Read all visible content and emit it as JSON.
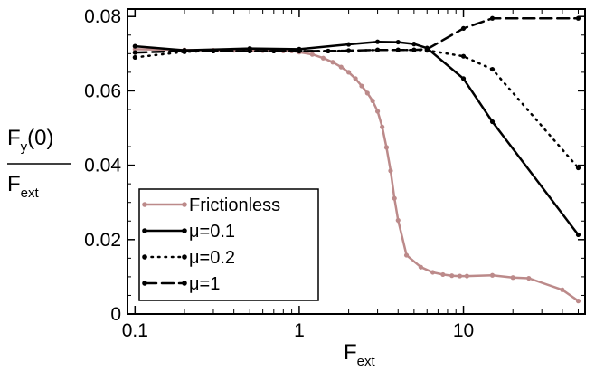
{
  "chart_data": {
    "type": "line",
    "xscale": "log",
    "xlim": [
      0.09,
      55
    ],
    "ylim": [
      0,
      0.082
    ],
    "xlabel": {
      "main": "F",
      "sub": "ext"
    },
    "ylabel": {
      "numerator": {
        "main": "F",
        "sub": "y",
        "suffix": "(0)"
      },
      "denominator": {
        "main": "F",
        "sub": "ext"
      }
    },
    "x_ticks": [
      {
        "value": 0.1,
        "label": "0.1"
      },
      {
        "value": 1,
        "label": "1"
      },
      {
        "value": 10,
        "label": "10"
      }
    ],
    "y_ticks": [
      {
        "value": 0,
        "label": "0"
      },
      {
        "value": 0.02,
        "label": "0.02"
      },
      {
        "value": 0.04,
        "label": "0.04"
      },
      {
        "value": 0.06,
        "label": "0.06"
      },
      {
        "value": 0.08,
        "label": "0.08"
      }
    ],
    "grid": false,
    "legend_position": "bottom-left",
    "series": [
      {
        "name": "Frictionless",
        "color": "#bc8a8a",
        "dash": "solid",
        "points": [
          [
            0.1,
            0.0712
          ],
          [
            0.2,
            0.071
          ],
          [
            0.3,
            0.0709
          ],
          [
            0.4,
            0.0709
          ],
          [
            0.5,
            0.0708
          ],
          [
            0.6,
            0.0708
          ],
          [
            0.7,
            0.0708
          ],
          [
            0.8,
            0.0707
          ],
          [
            0.9,
            0.0707
          ],
          [
            1.0,
            0.0704
          ],
          [
            1.2,
            0.0698
          ],
          [
            1.4,
            0.0688
          ],
          [
            1.6,
            0.0677
          ],
          [
            1.8,
            0.0664
          ],
          [
            2.0,
            0.065
          ],
          [
            2.2,
            0.0633
          ],
          [
            2.4,
            0.0613
          ],
          [
            2.6,
            0.0594
          ],
          [
            2.8,
            0.0573
          ],
          [
            3.0,
            0.0545
          ],
          [
            3.2,
            0.0503
          ],
          [
            3.4,
            0.0448
          ],
          [
            3.6,
            0.0385
          ],
          [
            3.8,
            0.0311
          ],
          [
            4.0,
            0.0252
          ],
          [
            4.5,
            0.0158
          ],
          [
            5.5,
            0.0126
          ],
          [
            6.5,
            0.0112
          ],
          [
            7.5,
            0.0106
          ],
          [
            8.5,
            0.0103
          ],
          [
            9.5,
            0.0102
          ],
          [
            10.5,
            0.0102
          ],
          [
            15,
            0.0104
          ],
          [
            20,
            0.0098
          ],
          [
            25,
            0.0096
          ],
          [
            40,
            0.0065
          ],
          [
            50,
            0.0035
          ]
        ]
      },
      {
        "name": "μ=0.1",
        "color": "#000000",
        "dash": "solid",
        "points": [
          [
            0.1,
            0.072
          ],
          [
            0.2,
            0.0709
          ],
          [
            0.5,
            0.0714
          ],
          [
            1.0,
            0.0712
          ],
          [
            2.0,
            0.0725
          ],
          [
            3.0,
            0.0732
          ],
          [
            4.0,
            0.0731
          ],
          [
            5.0,
            0.0726
          ],
          [
            6.0,
            0.0715
          ],
          [
            10,
            0.0633
          ],
          [
            15,
            0.0517
          ],
          [
            50,
            0.0213
          ]
        ]
      },
      {
        "name": "μ=0.2",
        "color": "#000000",
        "dash": "dotted",
        "points": [
          [
            0.1,
            0.069
          ],
          [
            0.2,
            0.0705
          ],
          [
            0.3,
            0.0707
          ],
          [
            0.5,
            0.0707
          ],
          [
            0.7,
            0.0707
          ],
          [
            1.0,
            0.0707
          ],
          [
            1.5,
            0.0707
          ],
          [
            2.0,
            0.0708
          ],
          [
            3.0,
            0.071
          ],
          [
            4.0,
            0.071
          ],
          [
            5.0,
            0.071
          ],
          [
            6.0,
            0.0709
          ],
          [
            10,
            0.0693
          ],
          [
            15,
            0.0658
          ],
          [
            50,
            0.0393
          ]
        ]
      },
      {
        "name": "μ=1",
        "color": "#000000",
        "dash": "dashed",
        "points": [
          [
            0.1,
            0.0703
          ],
          [
            0.2,
            0.0707
          ],
          [
            0.3,
            0.0707
          ],
          [
            0.5,
            0.0707
          ],
          [
            0.7,
            0.0707
          ],
          [
            1.0,
            0.0707
          ],
          [
            1.5,
            0.0707
          ],
          [
            2.0,
            0.0708
          ],
          [
            3.0,
            0.071
          ],
          [
            4.0,
            0.071
          ],
          [
            5.0,
            0.071
          ],
          [
            6.0,
            0.0712
          ],
          [
            10,
            0.0768
          ],
          [
            15,
            0.0795
          ],
          [
            50,
            0.0795
          ]
        ]
      }
    ]
  }
}
